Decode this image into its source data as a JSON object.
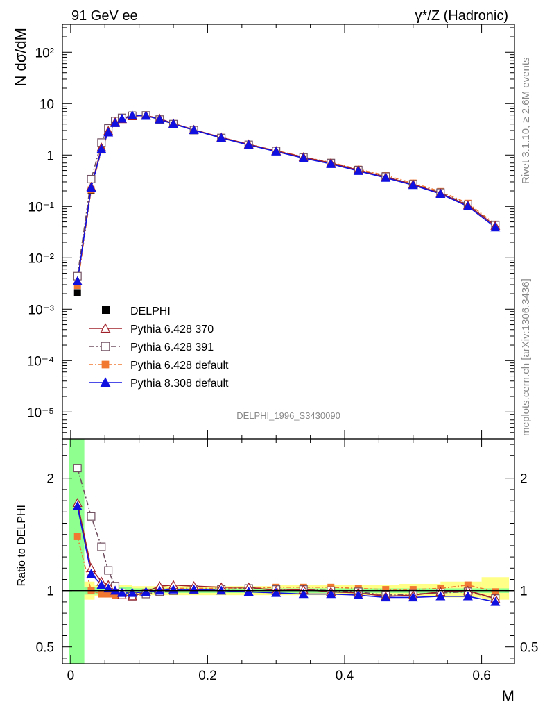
{
  "header": {
    "left": "91 GeV ee",
    "right": "γ*/Z (Hadronic)"
  },
  "side": {
    "rivet": "Rivet 3.1.10, ≥ 2.6M events",
    "mcplots": "mcplots.cern.ch [arXiv:1306.3436]"
  },
  "analysis_id": "DELPHI_1996_S3430090",
  "chart_data": {
    "type": "line",
    "x": [
      0.01,
      0.03,
      0.045,
      0.055,
      0.065,
      0.075,
      0.09,
      0.11,
      0.13,
      0.15,
      0.18,
      0.22,
      0.26,
      0.3,
      0.34,
      0.38,
      0.42,
      0.46,
      0.5,
      0.54,
      0.58,
      0.62
    ],
    "xlabel": "M",
    "xlim": [
      -0.012,
      0.648
    ],
    "xticks": [
      "0",
      "0.2",
      "0.4",
      "0.6"
    ],
    "main": {
      "ylabel": "N dσ/dM",
      "yscale": "log",
      "ylim": [
        3e-06,
        350
      ],
      "yticks": [
        "10⁻⁵",
        "10⁻⁴",
        "10⁻³",
        "10⁻²",
        "10⁻¹",
        "1",
        "10",
        "10²"
      ]
    },
    "ratio": {
      "ylabel": "Ratio to DELPHI",
      "ylim": [
        0.35,
        2.35
      ],
      "yticks": [
        "0.5",
        "1",
        "2"
      ]
    },
    "data": {
      "name": "DELPHI",
      "color": "#000000",
      "values": [
        0.0021,
        0.2,
        1.3,
        2.8,
        4.2,
        5.2,
        6.0,
        6.0,
        5.0,
        4.0,
        3.05,
        2.15,
        1.58,
        1.2,
        0.9,
        0.7,
        0.52,
        0.4,
        0.28,
        0.19,
        0.11,
        0.045
      ]
    },
    "band_green": [
      [
        -0.002,
        0.02,
        0.35,
        2.35
      ],
      [
        0.02,
        0.09,
        0.965,
        1.035
      ],
      [
        0.09,
        0.64,
        0.98,
        1.02
      ]
    ],
    "band_yellow": [
      [
        0.02,
        0.035,
        0.92,
        1.08
      ],
      [
        0.035,
        0.09,
        0.95,
        1.05
      ],
      [
        0.09,
        0.3,
        0.96,
        1.04
      ],
      [
        0.3,
        0.48,
        0.96,
        1.05
      ],
      [
        0.48,
        0.54,
        0.95,
        1.06
      ],
      [
        0.54,
        0.6,
        0.94,
        1.08
      ],
      [
        0.6,
        0.64,
        0.92,
        1.12
      ]
    ],
    "series": [
      {
        "name": "Pythia 6.428 370",
        "color": "#a0202a",
        "dash": "",
        "marker": "triangle-open",
        "values": [
          0.0035,
          0.24,
          1.4,
          2.95,
          4.4,
          5.0,
          5.7,
          5.9,
          5.1,
          4.1,
          3.1,
          2.2,
          1.62,
          1.2,
          0.91,
          0.7,
          0.51,
          0.37,
          0.27,
          0.18,
          0.105,
          0.042
        ],
        "ratio": [
          1.78,
          1.2,
          1.08,
          1.05,
          1.0,
          0.96,
          0.95,
          0.99,
          1.04,
          1.05,
          1.04,
          1.03,
          1.03,
          1.0,
          1.01,
          0.99,
          0.98,
          0.95,
          0.96,
          0.99,
          1.0,
          0.93
        ]
      },
      {
        "name": "Pythia 6.428 391",
        "color": "#705060",
        "dash": "8,3,2,3",
        "marker": "square-open",
        "values": [
          0.0044,
          0.34,
          1.75,
          3.3,
          4.6,
          5.3,
          5.8,
          5.9,
          4.9,
          4.0,
          3.05,
          2.15,
          1.58,
          1.2,
          0.9,
          0.7,
          0.51,
          0.38,
          0.27,
          0.185,
          0.108,
          0.043
        ],
        "ratio": [
          2.09,
          1.66,
          1.39,
          1.18,
          1.04,
          0.98,
          0.95,
          0.97,
          0.99,
          1.0,
          1.01,
          1.01,
          1.02,
          1.01,
          1.01,
          1.0,
          0.99,
          0.96,
          0.97,
          0.98,
          0.99,
          0.93
        ]
      },
      {
        "name": "Pythia 6.428 default",
        "color": "#f07830",
        "dash": "6,3,2,3",
        "marker": "square-filled",
        "values": [
          0.0029,
          0.21,
          1.25,
          2.7,
          4.1,
          5.0,
          5.8,
          5.8,
          5.0,
          4.1,
          3.1,
          2.2,
          1.6,
          1.22,
          0.92,
          0.72,
          0.53,
          0.4,
          0.285,
          0.195,
          0.115,
          0.045
        ],
        "ratio": [
          1.48,
          1.0,
          0.97,
          0.97,
          0.96,
          0.97,
          0.96,
          0.98,
          1.01,
          1.02,
          1.02,
          1.02,
          1.02,
          1.03,
          1.03,
          1.03,
          1.02,
          1.01,
          1.01,
          1.02,
          1.05,
          0.99
        ]
      },
      {
        "name": "Pythia 8.308 default",
        "color": "#1010e0",
        "dash": "",
        "marker": "triangle-filled",
        "values": [
          0.0035,
          0.23,
          1.3,
          2.75,
          4.2,
          5.1,
          5.9,
          5.8,
          4.95,
          4.05,
          3.05,
          2.15,
          1.57,
          1.17,
          0.87,
          0.67,
          0.49,
          0.36,
          0.26,
          0.175,
          0.1,
          0.039
        ],
        "ratio": [
          1.75,
          1.15,
          1.05,
          1.02,
          1.0,
          0.98,
          0.98,
          0.99,
          1.0,
          1.01,
          1.01,
          1.0,
          0.99,
          0.98,
          0.97,
          0.97,
          0.96,
          0.94,
          0.94,
          0.95,
          0.95,
          0.9
        ]
      }
    ]
  }
}
